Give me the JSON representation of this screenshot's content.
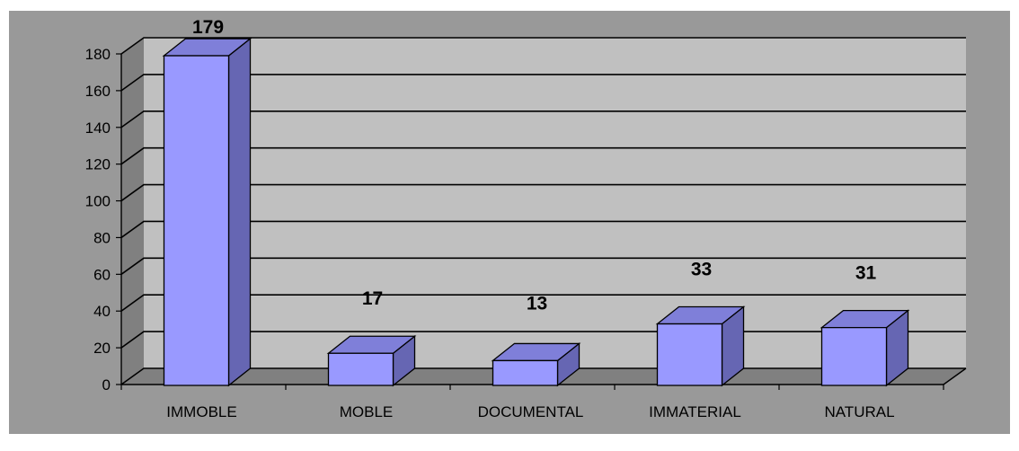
{
  "chart_data": {
    "type": "bar",
    "style": "3d-column",
    "categories": [
      "IMMOBLE",
      "MOBLE",
      "DOCUMENTAL",
      "IMMATERIAL",
      "NATURAL"
    ],
    "values": [
      179,
      17,
      13,
      33,
      31
    ],
    "data_labels": [
      "179",
      "17",
      "13",
      "33",
      "31"
    ],
    "ylim": [
      0,
      180
    ],
    "y_ticks": [
      0,
      20,
      40,
      60,
      80,
      100,
      120,
      140,
      160,
      180
    ],
    "grid": true,
    "legend": "none",
    "colors": {
      "outer_background": "#999999",
      "wall": "#c0c0c0",
      "side_wall": "#808080",
      "floor": "#808080",
      "bar_front": "#9999ff",
      "bar_top": "#7f7fd9",
      "bar_side": "#6666b3"
    }
  }
}
